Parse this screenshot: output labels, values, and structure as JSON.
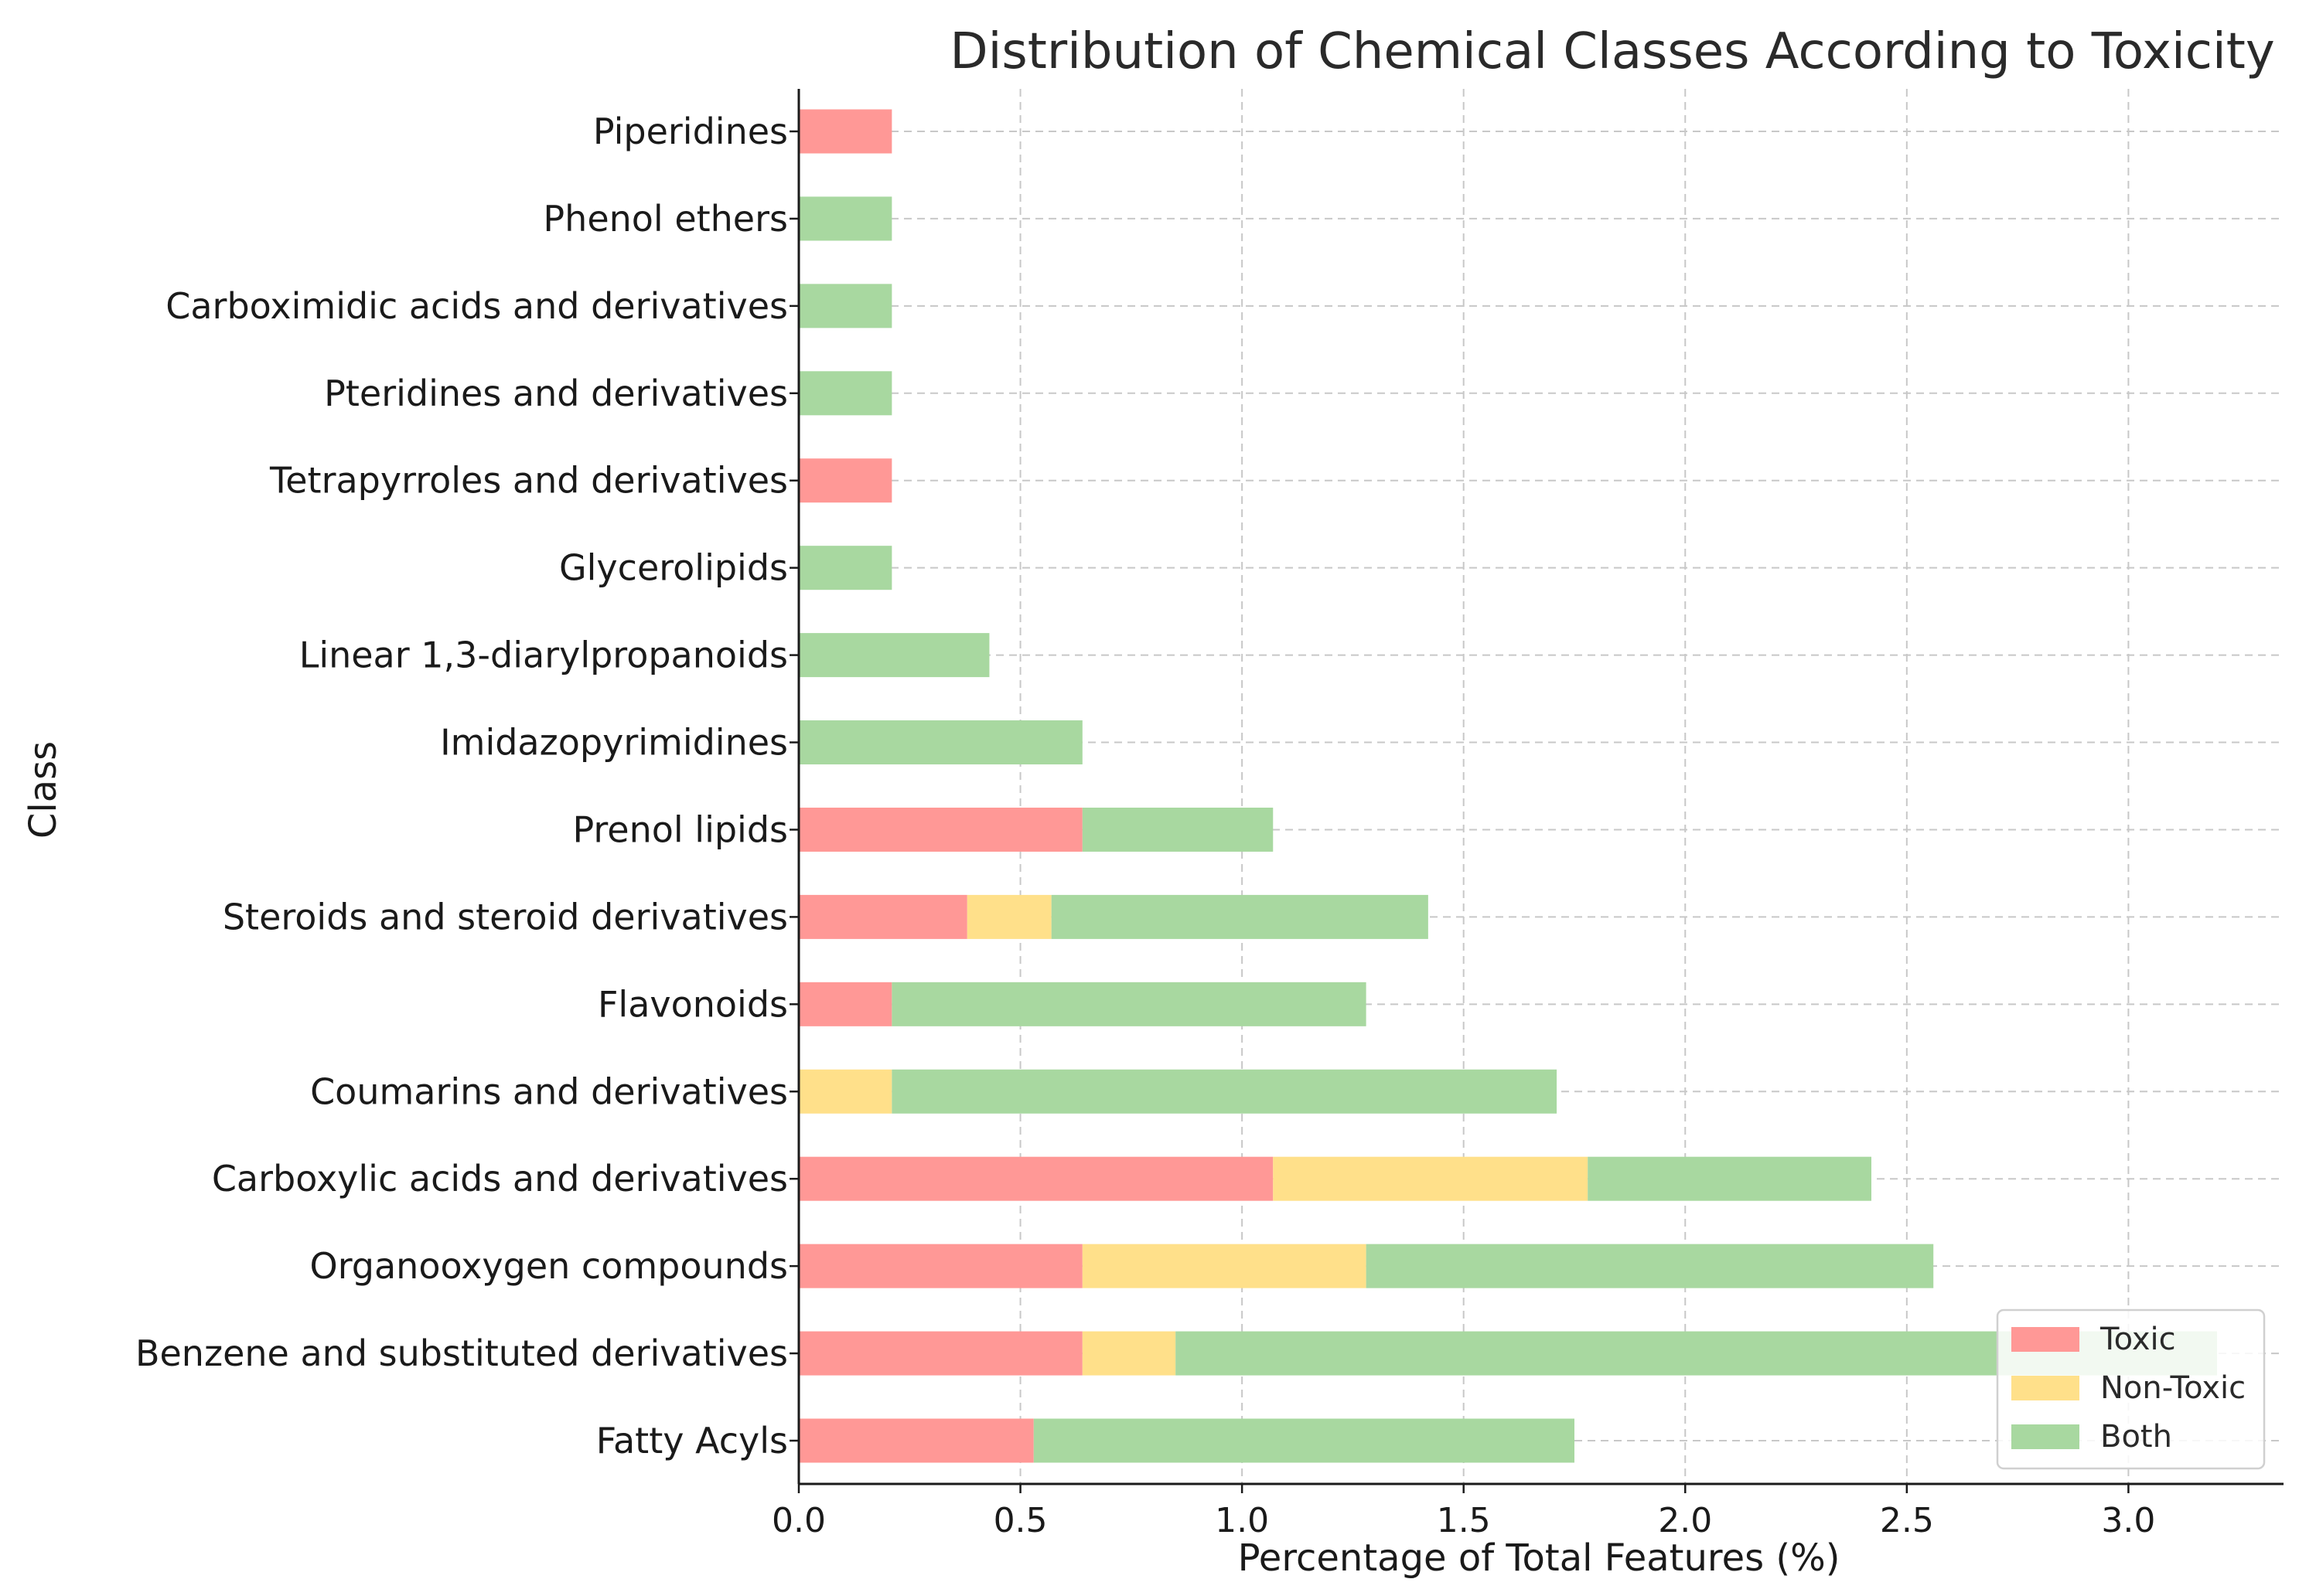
{
  "chart_data": {
    "type": "bar",
    "orientation": "horizontal",
    "stacked": true,
    "title": "Distribution of Chemical Classes According to Toxicity",
    "xlabel": "Percentage of Total Features (%)",
    "ylabel": "Class",
    "xlim": [
      0,
      3.35
    ],
    "xticks": [
      "0.0",
      "0.5",
      "1.0",
      "1.5",
      "2.0",
      "2.5",
      "3.0"
    ],
    "grid": true,
    "legend_position": "bottom-right",
    "categories": [
      "Fatty Acyls",
      "Benzene and substituted derivatives",
      "Organooxygen compounds",
      "Carboxylic acids and derivatives",
      "Coumarins and derivatives",
      "Flavonoids",
      "Steroids and steroid derivatives",
      "Prenol lipids",
      "Imidazopyrimidines",
      "Linear 1,3-diarylpropanoids",
      "Glycerolipids",
      "Tetrapyrroles and derivatives",
      "Pteridines and derivatives",
      "Carboximidic acids and derivatives",
      "Phenol ethers",
      "Piperidines"
    ],
    "series": [
      {
        "name": "Toxic",
        "color": "#ff9896",
        "values": [
          0.53,
          0.64,
          0.64,
          1.07,
          0,
          0.21,
          0.38,
          0.64,
          0,
          0,
          0,
          0.21,
          0,
          0,
          0,
          0.21
        ]
      },
      {
        "name": "Non-Toxic",
        "color": "#ffe08a",
        "values": [
          0,
          0.21,
          0.64,
          0.71,
          0.21,
          0,
          0.19,
          0,
          0,
          0,
          0,
          0,
          0,
          0,
          0,
          0
        ]
      },
      {
        "name": "Both",
        "color": "#a8d8a0",
        "values": [
          1.22,
          2.35,
          1.28,
          0.64,
          1.5,
          1.07,
          0.85,
          0.43,
          0.64,
          0.43,
          0.21,
          0,
          0.21,
          0.21,
          0.21,
          0
        ]
      }
    ]
  }
}
